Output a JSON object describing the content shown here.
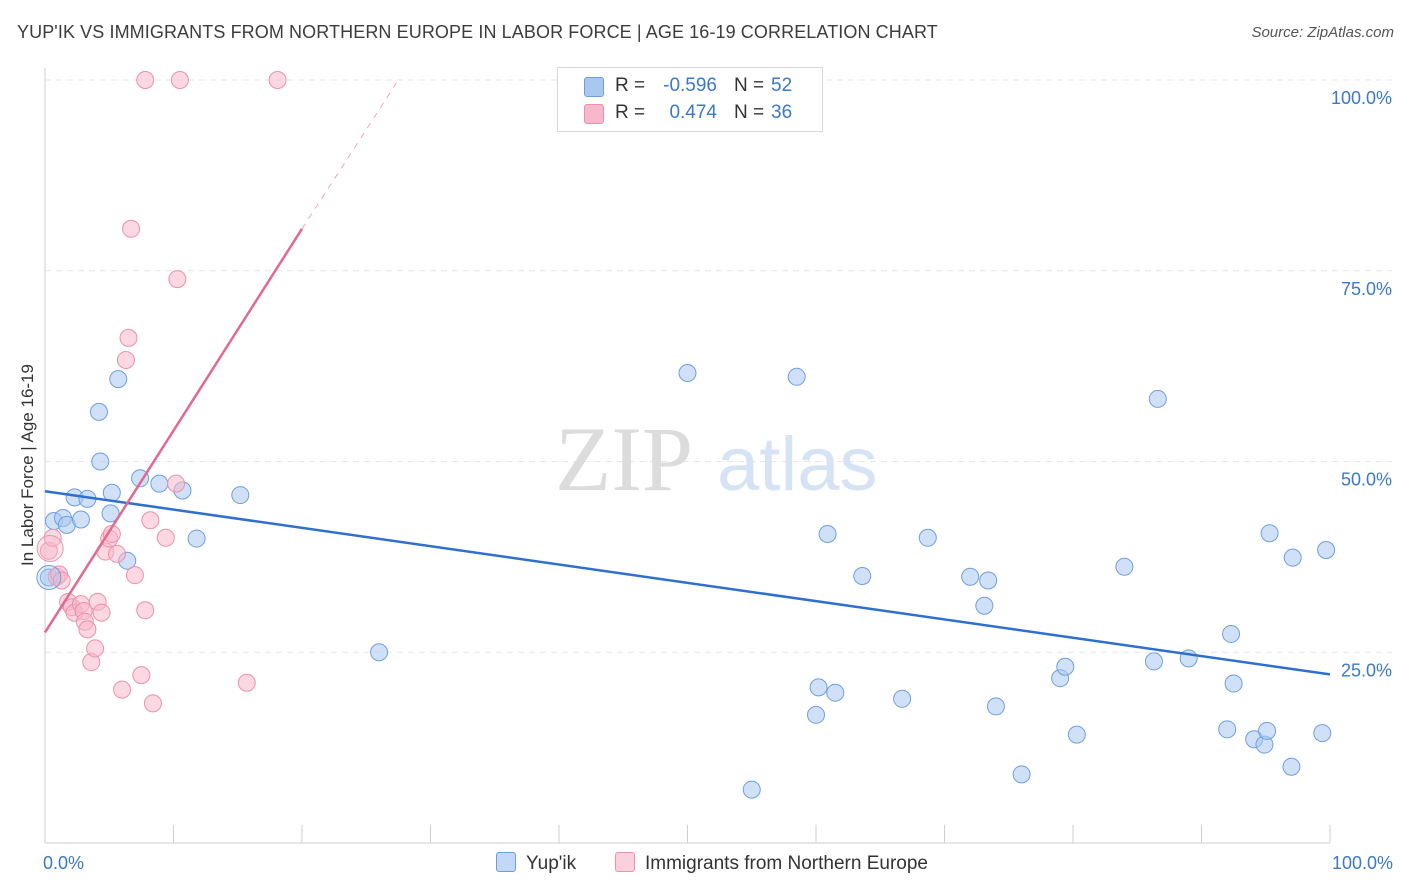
{
  "header": {
    "title": "YUP'IK VS IMMIGRANTS FROM NORTHERN EUROPE IN LABOR FORCE | AGE 16-19 CORRELATION CHART",
    "source": "Source: ZipAtlas.com"
  },
  "watermark": {
    "zip": "ZIP",
    "atlas": "atlas"
  },
  "legend": {
    "rows": [
      {
        "r_label": "R =",
        "r_value": "-0.596",
        "n_label": "N =",
        "n_value": "52",
        "color": "#a9c8f0"
      },
      {
        "r_label": "R =",
        "r_value": "0.474",
        "n_label": "N =",
        "n_value": "36",
        "color": "#f7b8cb"
      }
    ]
  },
  "bottom_legend": {
    "series1": "Yup'ik",
    "series2": "Immigrants from Northern Europe"
  },
  "colors": {
    "blue_fill": "#a9c8f0",
    "blue_stroke": "#6d9fe0",
    "blue_line": "#2f6fcf",
    "pink_fill": "#f7b8cb",
    "pink_stroke": "#ee8fad",
    "pink_line": "#e2698f",
    "tick_text": "#3b78c8"
  },
  "chart_data": {
    "type": "scatter",
    "title": "YUP'IK VS IMMIGRANTS FROM NORTHERN EUROPE IN LABOR FORCE | AGE 16-19 CORRELATION CHART",
    "xlabel": "",
    "ylabel": "In Labor Force | Age 16-19",
    "xlim": [
      0,
      100
    ],
    "ylim": [
      0,
      100
    ],
    "x_tick_labels": [
      "0.0%",
      "100.0%"
    ],
    "y_ticks": [
      {
        "value": 25,
        "label": "25.0%"
      },
      {
        "value": 50,
        "label": "50.0%"
      },
      {
        "value": 75,
        "label": "75.0%"
      },
      {
        "value": 100,
        "label": "100.0%"
      }
    ],
    "grid": true,
    "series": [
      {
        "name": "Yup'ik",
        "color": "#a9c8f0",
        "points": [
          [
            0.3,
            34.8
          ],
          [
            0.7,
            42.2
          ],
          [
            1.4,
            42.6
          ],
          [
            1.7,
            41.7
          ],
          [
            2.3,
            45.3
          ],
          [
            2.8,
            42.4
          ],
          [
            3.3,
            45.1
          ],
          [
            4.2,
            56.5
          ],
          [
            4.3,
            50.0
          ],
          [
            5.1,
            43.2
          ],
          [
            5.2,
            45.9
          ],
          [
            5.7,
            60.8
          ],
          [
            6.4,
            37.0
          ],
          [
            7.4,
            47.8
          ],
          [
            8.9,
            47.1
          ],
          [
            10.7,
            46.2
          ],
          [
            11.8,
            39.9
          ],
          [
            15.2,
            45.6
          ],
          [
            26.0,
            25.0
          ],
          [
            50.0,
            61.6
          ],
          [
            55.0,
            7.0
          ],
          [
            58.5,
            61.1
          ],
          [
            60.0,
            16.8
          ],
          [
            60.2,
            20.4
          ],
          [
            60.9,
            40.5
          ],
          [
            61.5,
            19.7
          ],
          [
            63.6,
            35.0
          ],
          [
            66.7,
            18.9
          ],
          [
            68.7,
            40.0
          ],
          [
            72.0,
            34.9
          ],
          [
            73.1,
            31.1
          ],
          [
            73.4,
            34.4
          ],
          [
            74.0,
            17.9
          ],
          [
            76.0,
            9.0
          ],
          [
            79.0,
            21.6
          ],
          [
            79.4,
            23.1
          ],
          [
            80.3,
            14.2
          ],
          [
            84.0,
            36.2
          ],
          [
            86.3,
            23.8
          ],
          [
            86.6,
            58.2
          ],
          [
            89.0,
            24.2
          ],
          [
            92.0,
            14.9
          ],
          [
            92.3,
            27.4
          ],
          [
            92.5,
            20.9
          ],
          [
            94.1,
            13.6
          ],
          [
            94.9,
            12.9
          ],
          [
            95.1,
            14.7
          ],
          [
            95.3,
            40.6
          ],
          [
            97.0,
            10.0
          ],
          [
            97.1,
            37.4
          ],
          [
            99.4,
            14.4
          ],
          [
            99.7,
            38.4
          ]
        ]
      },
      {
        "name": "Immigrants from Northern Europe",
        "color": "#f7b8cb",
        "points": [
          [
            0.3,
            38.3
          ],
          [
            0.6,
            40.0
          ],
          [
            0.9,
            34.9
          ],
          [
            1.1,
            35.2
          ],
          [
            1.3,
            34.4
          ],
          [
            1.8,
            31.6
          ],
          [
            2.1,
            30.9
          ],
          [
            2.3,
            30.2
          ],
          [
            2.8,
            31.3
          ],
          [
            3.0,
            30.4
          ],
          [
            3.1,
            29.0
          ],
          [
            3.3,
            28.0
          ],
          [
            3.6,
            23.7
          ],
          [
            3.9,
            25.5
          ],
          [
            4.1,
            31.6
          ],
          [
            4.4,
            30.2
          ],
          [
            4.7,
            38.2
          ],
          [
            5.0,
            39.9
          ],
          [
            5.2,
            40.5
          ],
          [
            5.6,
            37.9
          ],
          [
            6.0,
            20.1
          ],
          [
            6.3,
            63.3
          ],
          [
            6.5,
            66.2
          ],
          [
            6.7,
            80.5
          ],
          [
            7.0,
            35.1
          ],
          [
            7.5,
            22.0
          ],
          [
            7.8,
            30.5
          ],
          [
            7.8,
            100.0
          ],
          [
            8.2,
            42.3
          ],
          [
            8.4,
            18.3
          ],
          [
            9.4,
            40.0
          ],
          [
            10.2,
            47.1
          ],
          [
            10.3,
            73.9
          ],
          [
            10.5,
            100.0
          ],
          [
            15.7,
            21.0
          ],
          [
            18.1,
            100.0
          ]
        ]
      }
    ],
    "trend_lines": [
      {
        "series": "Yup'ik",
        "from": [
          0,
          46.1
        ],
        "to": [
          100,
          22.1
        ],
        "style": "solid"
      },
      {
        "series": "Immigrants from Northern Europe",
        "from": [
          0,
          27.6
        ],
        "to": [
          20.0,
          80.5
        ],
        "style": "solid"
      },
      {
        "series": "Immigrants from Northern Europe",
        "from": [
          20.0,
          80.5
        ],
        "to": [
          27.5,
          100.0
        ],
        "style": "dashed"
      }
    ]
  }
}
